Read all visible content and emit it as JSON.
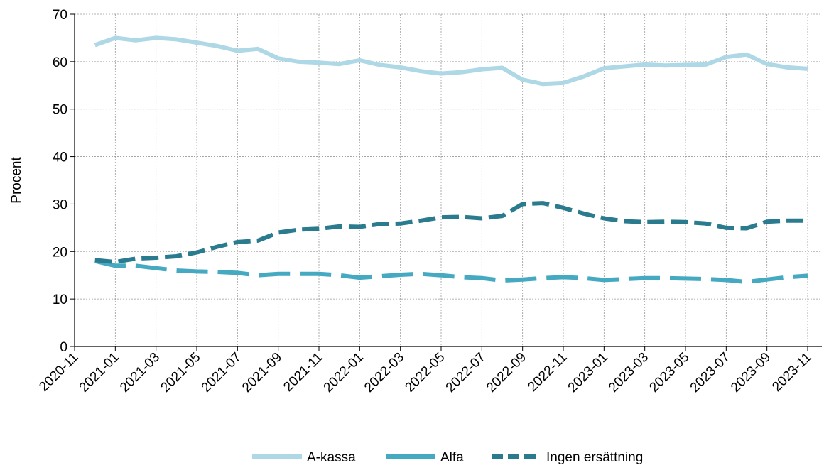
{
  "chart_data": {
    "type": "line",
    "title": "",
    "xlabel": "",
    "ylabel": "Procent",
    "ylim": [
      0,
      70
    ],
    "yticks": [
      0,
      10,
      20,
      30,
      40,
      50,
      60,
      70
    ],
    "grid": true,
    "legend_position": "bottom-center",
    "x": [
      "2020-12",
      "2021-01",
      "2021-02",
      "2021-03",
      "2021-04",
      "2021-05",
      "2021-06",
      "2021-07",
      "2021-08",
      "2021-09",
      "2021-10",
      "2021-11",
      "2021-12",
      "2022-01",
      "2022-02",
      "2022-03",
      "2022-04",
      "2022-05",
      "2022-06",
      "2022-07",
      "2022-08",
      "2022-09",
      "2022-10",
      "2022-11",
      "2022-12",
      "2023-01",
      "2023-02",
      "2023-03",
      "2023-04",
      "2023-05",
      "2023-06",
      "2023-07",
      "2023-08",
      "2023-09",
      "2023-10",
      "2023-11"
    ],
    "xtick_labels": [
      "2020-11",
      "2021-01",
      "2021-03",
      "2021-05",
      "2021-07",
      "2021-09",
      "2021-11",
      "2022-01",
      "2022-03",
      "2022-05",
      "2022-07",
      "2022-09",
      "2022-11",
      "2023-01",
      "2023-03",
      "2023-05",
      "2023-07",
      "2023-09",
      "2023-11"
    ],
    "series": [
      {
        "name": "A-kassa",
        "color": "#aed8e5",
        "dash": "solid",
        "values": [
          63.5,
          65.0,
          64.5,
          65.0,
          64.7,
          64.0,
          63.3,
          62.3,
          62.7,
          60.7,
          60.0,
          59.8,
          59.5,
          60.3,
          59.3,
          58.8,
          58.0,
          57.5,
          57.8,
          58.4,
          58.7,
          56.2,
          55.3,
          55.5,
          56.9,
          58.6,
          59.0,
          59.4,
          59.2,
          59.3,
          59.4,
          61.0,
          61.5,
          59.5,
          58.8,
          58.5
        ]
      },
      {
        "name": "Alfa",
        "color": "#45a9c2",
        "dash": "long",
        "values": [
          18.0,
          17.0,
          17.0,
          16.5,
          16.0,
          15.8,
          15.7,
          15.5,
          15.0,
          15.3,
          15.3,
          15.3,
          15.0,
          14.5,
          14.8,
          15.1,
          15.3,
          15.0,
          14.6,
          14.4,
          13.9,
          14.1,
          14.4,
          14.6,
          14.4,
          14.0,
          14.2,
          14.4,
          14.4,
          14.3,
          14.2,
          14.0,
          13.6,
          14.1,
          14.6,
          14.9
        ]
      },
      {
        "name": "Ingen ersättning",
        "color": "#2b7b8f",
        "dash": "dashed",
        "values": [
          18.2,
          17.8,
          18.5,
          18.7,
          19.0,
          19.8,
          21.0,
          22.0,
          22.3,
          24.0,
          24.6,
          24.8,
          25.3,
          25.2,
          25.8,
          25.9,
          26.5,
          27.2,
          27.3,
          27.0,
          27.5,
          30.0,
          30.2,
          29.2,
          28.0,
          27.0,
          26.4,
          26.2,
          26.3,
          26.2,
          25.9,
          25.0,
          24.9,
          26.3,
          26.5,
          26.5
        ]
      }
    ]
  }
}
